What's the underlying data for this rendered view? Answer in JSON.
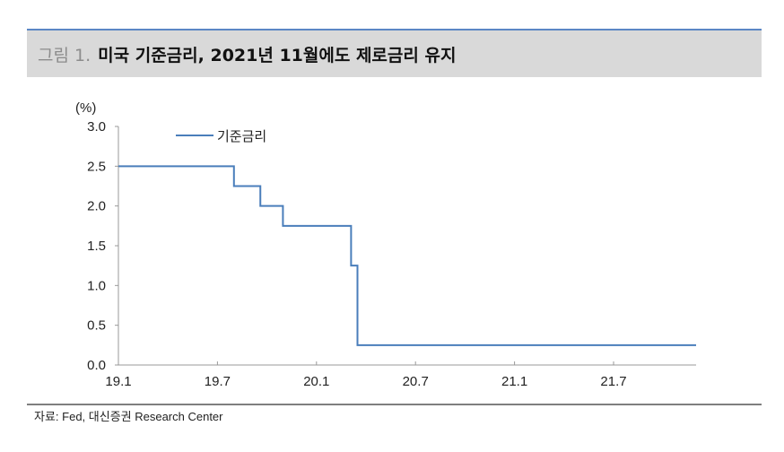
{
  "header": {
    "figure_label": "그림 1.",
    "title": "미국 기준금리, 2021년 11월에도 제로금리 유지"
  },
  "footer": {
    "source": "자료: Fed, 대신증권 Research Center"
  },
  "chart_data": {
    "type": "line",
    "title": "",
    "ylabel": "(%)",
    "xlabel": "",
    "ylim": [
      0,
      3.0
    ],
    "yticks": [
      "0.0",
      "0.5",
      "1.0",
      "1.5",
      "2.0",
      "2.5",
      "3.0"
    ],
    "xlim": [
      "2019-01-01",
      "2021-11-01"
    ],
    "xticks": [
      {
        "date": "2019-01-01",
        "label": "19.1"
      },
      {
        "date": "2019-07-01",
        "label": "19.7"
      },
      {
        "date": "2020-01-01",
        "label": "20.1"
      },
      {
        "date": "2020-07-01",
        "label": "20.7"
      },
      {
        "date": "2021-01-01",
        "label": "21.1"
      },
      {
        "date": "2021-07-01",
        "label": "21.7"
      }
    ],
    "grid": false,
    "legend": "top-left",
    "series": [
      {
        "name": "기준금리",
        "color": "#4a7ebb",
        "step": true,
        "points": [
          {
            "x": "2019-01-01",
            "y": 2.5
          },
          {
            "x": "2019-08-01",
            "y": 2.25
          },
          {
            "x": "2019-09-19",
            "y": 2.0
          },
          {
            "x": "2019-10-31",
            "y": 1.75
          },
          {
            "x": "2020-03-04",
            "y": 1.25
          },
          {
            "x": "2020-03-16",
            "y": 0.25
          },
          {
            "x": "2021-11-01",
            "y": 0.25
          }
        ]
      }
    ]
  }
}
